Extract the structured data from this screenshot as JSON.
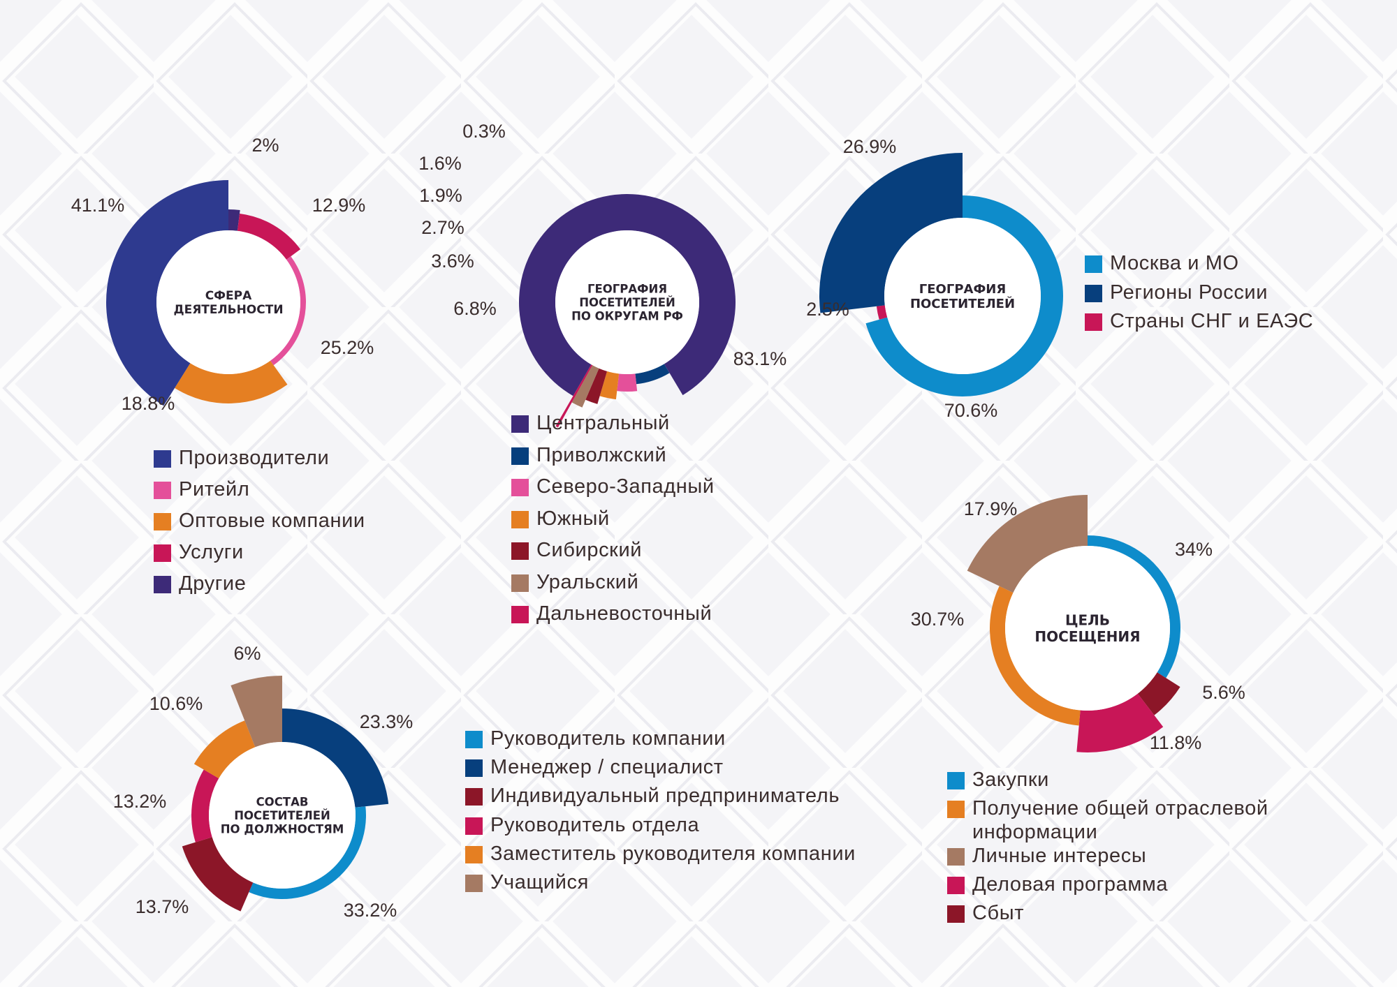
{
  "charts": [
    {
      "id": "sfera",
      "center_label": [
        "СФЕРА",
        "ДЕЯТЕЛЬНОСТИ"
      ],
      "legend": [
        "Производители",
        "Ритейл",
        "Оптовые компании",
        "Услуги",
        "Другие"
      ]
    },
    {
      "id": "okrug",
      "center_label": [
        "ГЕОГРАФИЯ",
        "ПОСЕТИТЕЛЕЙ",
        "ПО ОКРУГАМ РФ"
      ],
      "legend": [
        "Центральный",
        "Приволжский",
        "Северо-Западный",
        "Южный",
        "Сибирский",
        "Уральский",
        "Дальневосточный"
      ]
    },
    {
      "id": "geo",
      "center_label": [
        "ГЕОГРАФИЯ",
        "ПОСЕТИТЕЛЕЙ"
      ],
      "legend": [
        "Москва и МО",
        "Регионы России",
        "Страны СНГ и ЕАЭС"
      ]
    },
    {
      "id": "sostav",
      "center_label": [
        "СОСТАВ",
        "ПОСЕТИТЕЛЕЙ",
        "ПО ДОЛЖНОСТЯМ"
      ],
      "legend": [
        "Руководитель компании",
        "Менеджер / специалист",
        "Индивидуальный предприниматель",
        "Руководитель отдела",
        "Заместитель руководителя компании",
        "Учащийся"
      ]
    },
    {
      "id": "cel",
      "center_label": [
        "ЦЕЛЬ",
        "ПОСЕЩЕНИЯ"
      ],
      "legend": [
        "Закупки",
        "Получение общей отраслевой информации",
        "Личные интересы",
        "Деловая программа",
        "Сбыт"
      ]
    }
  ],
  "chart_data": [
    {
      "type": "pie",
      "slices": [
        {
          "name": "Другие",
          "value": 2,
          "label": "2%",
          "color": "#3d2a78"
        },
        {
          "name": "Услуги",
          "value": 12.9,
          "label": "12.9%",
          "color": "#c81657"
        },
        {
          "name": "Ритейл",
          "value": 25.2,
          "label": "25.2%",
          "color": "#e4509a"
        },
        {
          "name": "Оптовые компании",
          "value": 18.8,
          "label": "18.8%",
          "color": "#e57f22"
        },
        {
          "name": "Производители",
          "value": 41.1,
          "label": "41.1%",
          "color": "#2e3a8f"
        }
      ]
    },
    {
      "type": "pie",
      "slices": [
        {
          "name": "Центральный",
          "value": 83.1,
          "label": "83.1%",
          "color": "#3d2a78"
        },
        {
          "name": "Приволжский",
          "value": 6.8,
          "label": "6.8%",
          "color": "#073f7d"
        },
        {
          "name": "Северо-Западный",
          "value": 3.6,
          "label": "3.6%",
          "color": "#e4509a"
        },
        {
          "name": "Южный",
          "value": 2.7,
          "label": "2.7%",
          "color": "#e57f22"
        },
        {
          "name": "Сибирский",
          "value": 1.9,
          "label": "1.9%",
          "color": "#8c1628"
        },
        {
          "name": "Уральский",
          "value": 1.6,
          "label": "1.6%",
          "color": "#a57a63"
        },
        {
          "name": "Дальневосточный",
          "value": 0.3,
          "label": "0.3%",
          "color": "#c81657"
        }
      ]
    },
    {
      "type": "pie",
      "slices": [
        {
          "name": "Москва и МО",
          "value": 70.6,
          "label": "70.6%",
          "color": "#0e8ccb"
        },
        {
          "name": "Страны СНГ и ЕАЭС",
          "value": 2.5,
          "label": "2.5%",
          "color": "#c81657"
        },
        {
          "name": "Регионы России",
          "value": 26.9,
          "label": "26.9%",
          "color": "#073f7d"
        }
      ]
    },
    {
      "type": "pie",
      "slices": [
        {
          "name": "Менеджер / специалист",
          "value": 23.3,
          "label": "23.3%",
          "color": "#073f7d"
        },
        {
          "name": "Руководитель компании",
          "value": 33.2,
          "label": "33.2%",
          "color": "#0e8ccb"
        },
        {
          "name": "Индивидуальный предприниматель",
          "value": 13.7,
          "label": "13.7%",
          "color": "#8c1628"
        },
        {
          "name": "Руководитель отдела",
          "value": 13.2,
          "label": "13.2%",
          "color": "#c81657"
        },
        {
          "name": "Заместитель руководителя компании",
          "value": 10.6,
          "label": "10.6%",
          "color": "#e57f22"
        },
        {
          "name": "Учащийся",
          "value": 6,
          "label": "6%",
          "color": "#a57a63"
        }
      ]
    },
    {
      "type": "pie",
      "slices": [
        {
          "name": "Закупки",
          "value": 34,
          "label": "34%",
          "color": "#0e8ccb"
        },
        {
          "name": "Сбыт",
          "value": 5.6,
          "label": "5.6%",
          "color": "#8c1628"
        },
        {
          "name": "Деловая программа",
          "value": 11.8,
          "label": "11.8%",
          "color": "#c81657"
        },
        {
          "name": "Получение общей отраслевой информации",
          "value": 30.7,
          "label": "30.7%",
          "color": "#e57f22"
        },
        {
          "name": "Личные интересы",
          "value": 17.9,
          "label": "17.9%",
          "color": "#a57a63"
        }
      ]
    }
  ]
}
